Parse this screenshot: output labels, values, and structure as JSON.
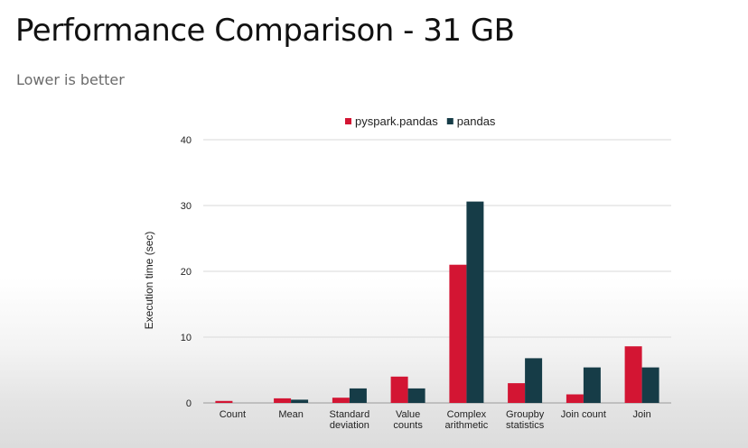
{
  "slide": {
    "title": "Performance Comparison - 31 GB",
    "subtitle": "Lower is better"
  },
  "colors": {
    "pyspark": "#d31533",
    "pandas": "#163c47",
    "grid": "#d9d9d9",
    "axis_text": "#222222"
  },
  "chart_data": {
    "type": "bar",
    "title": "",
    "xlabel": "",
    "ylabel": "Execution time (sec)",
    "ylim": [
      0,
      40
    ],
    "yticks": [
      0,
      10,
      20,
      30,
      40
    ],
    "grid": true,
    "legend_position": "top",
    "categories": [
      [
        "Count"
      ],
      [
        "Mean"
      ],
      [
        "Standard",
        "deviation"
      ],
      [
        "Value",
        "counts"
      ],
      [
        "Complex",
        "arithmetic"
      ],
      [
        "Groupby",
        "statistics"
      ],
      [
        "Join count"
      ],
      [
        "Join"
      ]
    ],
    "series": [
      {
        "name": "pyspark.pandas",
        "color": "#d31533",
        "values": [
          0.3,
          0.7,
          0.8,
          4.0,
          21.0,
          3.0,
          1.3,
          8.6
        ]
      },
      {
        "name": "pandas",
        "color": "#163c47",
        "values": [
          0.0,
          0.5,
          2.2,
          2.2,
          30.6,
          6.8,
          5.4,
          5.4
        ]
      }
    ]
  }
}
